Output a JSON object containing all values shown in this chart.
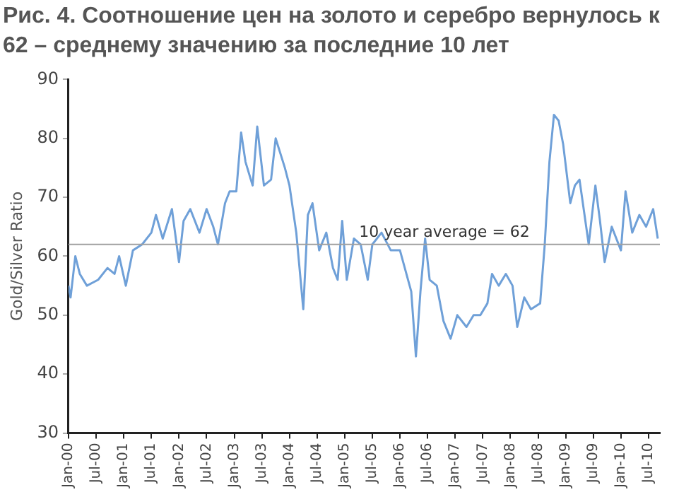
{
  "chart_data": {
    "type": "line",
    "title": "Рис. 4. Соотношение цен на золото и серебро вернулось к 62 – среднему значению за последние 10 лет",
    "ylabel": "Gold/Silver Ratio",
    "x": [
      "2000-01-01",
      "2000-01-15",
      "2000-02-15",
      "2000-03-15",
      "2000-05-01",
      "2000-07-15",
      "2000-09-15",
      "2000-11-01",
      "2000-12-01",
      "2001-01-15",
      "2001-03-01",
      "2001-05-01",
      "2001-07-01",
      "2001-08-01",
      "2001-09-15",
      "2001-11-15",
      "2002-01-01",
      "2002-02-01",
      "2002-03-15",
      "2002-05-15",
      "2002-07-01",
      "2002-08-15",
      "2002-09-15",
      "2002-11-01",
      "2002-12-01",
      "2003-01-15",
      "2003-02-15",
      "2003-03-15",
      "2003-05-01",
      "2003-06-01",
      "2003-07-15",
      "2003-09-01",
      "2003-10-01",
      "2003-12-01",
      "2004-01-01",
      "2004-02-15",
      "2004-04-01",
      "2004-05-01",
      "2004-06-01",
      "2004-07-15",
      "2004-09-01",
      "2004-10-15",
      "2004-11-15",
      "2004-12-15",
      "2005-01-15",
      "2005-03-01",
      "2005-04-15",
      "2005-06-01",
      "2005-07-01",
      "2005-09-01",
      "2005-11-01",
      "2006-01-01",
      "2006-03-15",
      "2006-04-15",
      "2006-05-15",
      "2006-06-15",
      "2006-07-15",
      "2006-09-01",
      "2006-10-15",
      "2006-12-01",
      "2007-01-15",
      "2007-03-15",
      "2007-05-01",
      "2007-06-15",
      "2007-08-01",
      "2007-09-01",
      "2007-10-15",
      "2007-12-01",
      "2008-01-15",
      "2008-02-15",
      "2008-04-01",
      "2008-05-15",
      "2008-07-15",
      "2008-08-15",
      "2008-09-15",
      "2008-10-15",
      "2008-11-15",
      "2008-12-15",
      "2009-02-01",
      "2009-03-01",
      "2009-04-01",
      "2009-06-01",
      "2009-07-15",
      "2009-08-15",
      "2009-09-15",
      "2009-11-01",
      "2010-01-01",
      "2010-02-01",
      "2010-03-15",
      "2010-05-01",
      "2010-06-15",
      "2010-08-01",
      "2010-09-01"
    ],
    "series": [
      {
        "color": "#6fa0d8",
        "values": [
          55,
          53,
          60,
          57,
          55,
          56,
          58,
          57,
          60,
          55,
          61,
          62,
          64,
          67,
          63,
          68,
          59,
          66,
          68,
          64,
          68,
          65,
          62,
          69,
          71,
          71,
          81,
          76,
          72,
          82,
          72,
          73,
          80,
          75,
          72,
          64,
          51,
          67,
          69,
          61,
          64,
          58,
          56,
          66,
          56,
          63,
          62,
          56,
          62,
          64,
          61,
          61,
          54,
          43,
          54,
          63,
          56,
          55,
          49,
          46,
          50,
          48,
          50,
          50,
          52,
          57,
          55,
          57,
          55,
          48,
          53,
          51,
          52,
          62,
          76,
          84,
          83,
          79,
          69,
          72,
          73,
          62,
          72,
          66,
          59,
          65,
          61,
          71,
          64,
          67,
          65,
          68,
          63
        ]
      }
    ],
    "xlim": [
      "2000-01-01",
      "2010-09-15"
    ],
    "xticks": [
      {
        "value": "2000-01",
        "label": "Jan-00"
      },
      {
        "value": "2000-07",
        "label": "Jul-00"
      },
      {
        "value": "2001-01",
        "label": "Jan-01"
      },
      {
        "value": "2001-07",
        "label": "Jul-01"
      },
      {
        "value": "2002-01",
        "label": "Jan-02"
      },
      {
        "value": "2002-07",
        "label": "Jul-02"
      },
      {
        "value": "2003-01",
        "label": "Jan-03"
      },
      {
        "value": "2003-07",
        "label": "Jul-03"
      },
      {
        "value": "2004-01",
        "label": "Jan-04"
      },
      {
        "value": "2004-07",
        "label": "Jul-04"
      },
      {
        "value": "2005-01",
        "label": "Jan-05"
      },
      {
        "value": "2005-07",
        "label": "Jul-05"
      },
      {
        "value": "2006-01",
        "label": "Jan-06"
      },
      {
        "value": "2006-07",
        "label": "Jul-06"
      },
      {
        "value": "2007-01",
        "label": "Jan-07"
      },
      {
        "value": "2007-07",
        "label": "Jul-07"
      },
      {
        "value": "2008-01",
        "label": "Jan-08"
      },
      {
        "value": "2008-07",
        "label": "Jul-08"
      },
      {
        "value": "2009-01",
        "label": "Jan-09"
      },
      {
        "value": "2009-07",
        "label": "Jul-09"
      },
      {
        "value": "2010-01",
        "label": "Jan-10"
      },
      {
        "value": "2010-07",
        "label": "Jul-10"
      }
    ],
    "ylim": [
      30,
      90
    ],
    "yticks": [
      30,
      40,
      50,
      60,
      70,
      80,
      90
    ],
    "ref_lines": [
      {
        "axis": "y",
        "value": 62,
        "label": "10 year average = 62",
        "color": "#a0a0a0"
      }
    ],
    "grid": false,
    "legend": false,
    "marker": "none",
    "line_style": "solid"
  }
}
